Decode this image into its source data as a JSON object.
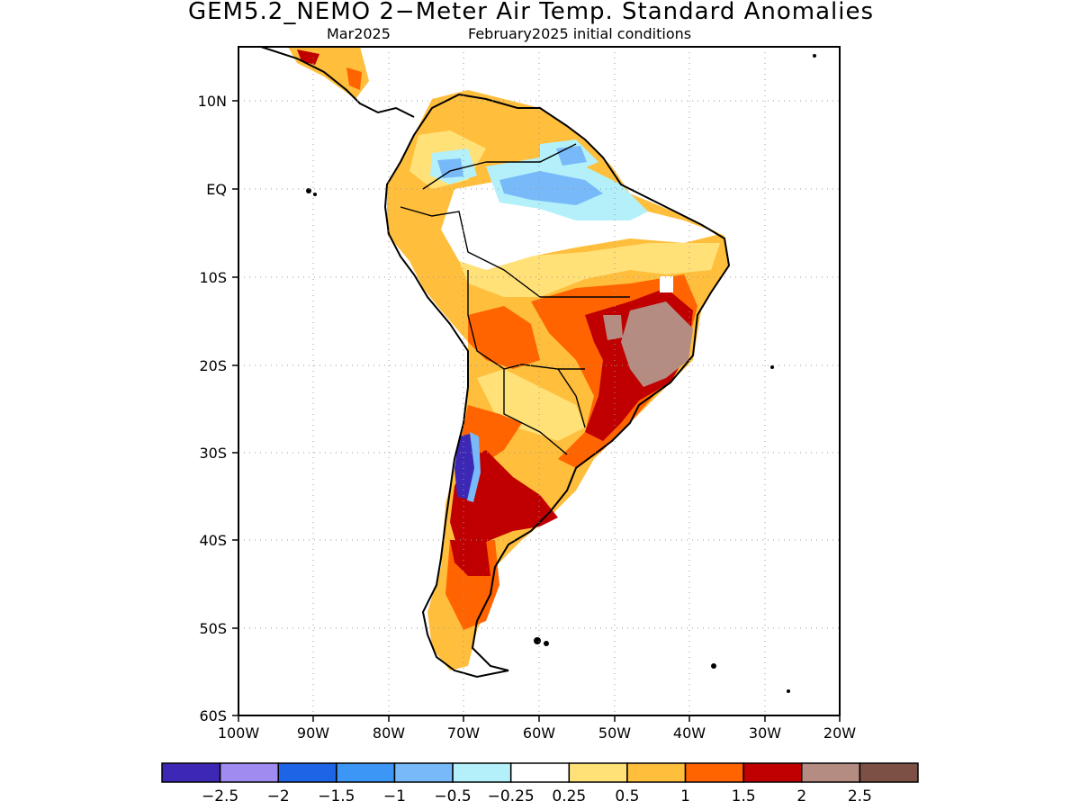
{
  "title": "GEM5.2_NEMO 2−Meter Air Temp. Standard Anomalies",
  "subtitle_left": "Mar2025",
  "subtitle_right": "February2025 initial conditions",
  "lat_ticks": [
    "10N",
    "EQ",
    "10S",
    "20S",
    "30S",
    "40S",
    "50S",
    "60S"
  ],
  "lon_ticks": [
    "100W",
    "90W",
    "80W",
    "70W",
    "60W",
    "50W",
    "40W",
    "30W",
    "20W"
  ],
  "colorbar": {
    "colors": [
      "#3c28b4",
      "#a08cf0",
      "#1e64e6",
      "#3c96f5",
      "#78b9fa",
      "#b4f0fa",
      "#ffffff",
      "#ffe178",
      "#ffbe3c",
      "#ff6400",
      "#c00000",
      "#b48c82",
      "#7d5046"
    ],
    "labels": [
      "−2.5",
      "−2",
      "−1.5",
      "−1",
      "−0.5",
      "−0.25",
      "0.25",
      "0.5",
      "1",
      "1.5",
      "2",
      "2.5"
    ]
  }
}
